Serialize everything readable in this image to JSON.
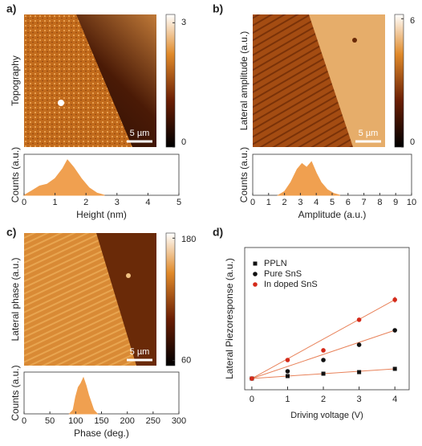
{
  "chart_data": [
    {
      "type": "image",
      "panel": "a)",
      "ylabel": "Topography",
      "clim": [
        0,
        3.2
      ],
      "cticks": [
        0,
        3
      ],
      "scale_bar": "5 µm"
    },
    {
      "type": "area",
      "xlabel": "Height (nm)",
      "ylabel": "Counts (a.u.)",
      "color": "#f0a050",
      "x": [
        0,
        0.25,
        0.5,
        0.75,
        1,
        1.25,
        1.4,
        1.6,
        1.85,
        2.1,
        2.35,
        2.6
      ],
      "values": [
        0,
        0.12,
        0.25,
        0.3,
        0.45,
        0.72,
        0.95,
        0.75,
        0.45,
        0.2,
        0.06,
        0
      ],
      "xlim": [
        0,
        5
      ],
      "xticks": [
        0,
        1,
        2,
        3,
        4,
        5
      ],
      "ylim": [
        0,
        1.1
      ]
    },
    {
      "type": "image",
      "panel": "b)",
      "ylabel": "Lateral amplitude (a.u.)",
      "clim": [
        0,
        6.2
      ],
      "cticks": [
        0,
        6
      ],
      "scale_bar": "5 µm"
    },
    {
      "type": "area",
      "xlabel": "Amplitude (a.u.)",
      "ylabel": "Counts (a.u.)",
      "color": "#f0a050",
      "x": [
        1.6,
        2,
        2.4,
        2.8,
        3.1,
        3.4,
        3.7,
        4,
        4.3,
        4.7,
        5.1,
        5.5
      ],
      "values": [
        0,
        0.1,
        0.35,
        0.7,
        0.85,
        0.75,
        0.9,
        0.6,
        0.35,
        0.15,
        0.05,
        0
      ],
      "xlim": [
        0,
        10
      ],
      "xticks": [
        0,
        1,
        2,
        3,
        4,
        5,
        6,
        7,
        8,
        9,
        10
      ],
      "ylim": [
        0,
        1.1
      ]
    },
    {
      "type": "image",
      "panel": "c)",
      "ylabel": "Lateral phase (a.u.)",
      "clim": [
        55,
        185
      ],
      "cticks": [
        60,
        180
      ],
      "scale_bar": "5 µm"
    },
    {
      "type": "area",
      "xlabel": "Phase (deg.)",
      "ylabel": "Counts (a.u.)",
      "color": "#f0a050",
      "x": [
        88,
        95,
        100,
        105,
        110,
        115,
        120,
        125,
        130,
        135,
        142
      ],
      "values": [
        0,
        0.1,
        0.45,
        0.7,
        0.8,
        0.95,
        0.75,
        0.5,
        0.3,
        0.1,
        0
      ],
      "xlim": [
        0,
        300
      ],
      "xticks": [
        0,
        50,
        100,
        150,
        200,
        250,
        300
      ],
      "ylim": [
        0,
        1.1
      ]
    },
    {
      "type": "scatter",
      "panel": "d)",
      "xlabel": "Driving voltage (V)",
      "ylabel": "Lateral Piezoresponse (a.u.)",
      "xlim": [
        -0.2,
        4.4
      ],
      "xticks": [
        0,
        1,
        2,
        3,
        4
      ],
      "ylim": [
        0,
        10
      ],
      "fit_color": "#e8825a",
      "series": [
        {
          "name": "PPLN",
          "color": "#111111",
          "marker": "square",
          "x": [
            0,
            1,
            2,
            3,
            4
          ],
          "values": [
            0.79,
            0.96,
            1.13,
            1.24,
            1.47
          ]
        },
        {
          "name": "Pure SnS",
          "color": "#111111",
          "marker": "circle",
          "x": [
            0,
            1,
            2,
            3,
            4
          ],
          "values": [
            0.79,
            1.3,
            2.09,
            3.16,
            4.18
          ]
        },
        {
          "name": "In doped SnS",
          "color": "#d42a1a",
          "marker": "circle",
          "x": [
            0,
            1,
            2,
            3,
            4
          ],
          "values": [
            0.79,
            2.09,
            2.77,
            4.92,
            6.33
          ],
          "errors": [
            0,
            0,
            0,
            0,
            0.2
          ]
        }
      ]
    }
  ]
}
